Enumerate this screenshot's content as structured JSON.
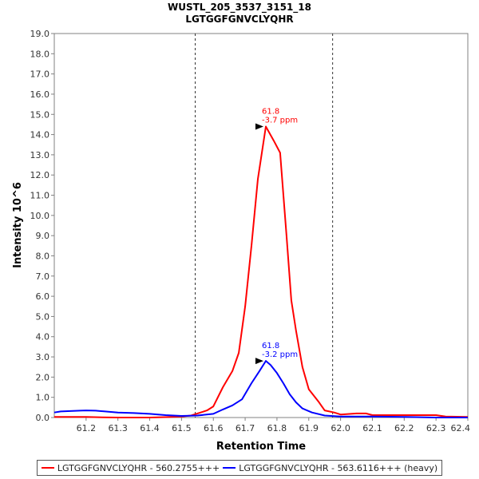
{
  "chart_data": {
    "type": "line",
    "title": "WUSTL_205_3537_3151_18",
    "subtitle": "LGTGGFGNVCLYQHR",
    "xlabel": "Retention Time",
    "ylabel": "Intensity 10^6",
    "xlim": [
      61.1,
      62.4
    ],
    "ylim": [
      0,
      19
    ],
    "x_ticks": [
      "61.2",
      "61.3",
      "61.4",
      "61.5",
      "61.6",
      "61.7",
      "61.8",
      "61.9",
      "62.0",
      "62.1",
      "62.2",
      "62.3",
      "62.4"
    ],
    "y_ticks": [
      "0.0",
      "1.0",
      "2.0",
      "3.0",
      "4.0",
      "5.0",
      "6.0",
      "7.0",
      "8.0",
      "9.0",
      "10.0",
      "11.0",
      "12.0",
      "13.0",
      "14.0",
      "15.0",
      "16.0",
      "17.0",
      "18.0",
      "19.0"
    ],
    "grid": false,
    "legend_position": "bottom",
    "boundaries": [
      61.543,
      61.975
    ],
    "series": [
      {
        "name": "LGTGGFGNVCLYQHR - 560.2755+++",
        "color": "#ff0000",
        "points": [
          [
            61.1,
            0.03
          ],
          [
            61.15,
            0.03
          ],
          [
            61.2,
            0.03
          ],
          [
            61.25,
            0.01
          ],
          [
            61.3,
            0.0
          ],
          [
            61.35,
            0.0
          ],
          [
            61.4,
            0.0
          ],
          [
            61.45,
            0.02
          ],
          [
            61.5,
            0.05
          ],
          [
            61.53,
            0.1
          ],
          [
            61.56,
            0.25
          ],
          [
            61.58,
            0.35
          ],
          [
            61.6,
            0.55
          ],
          [
            61.63,
            1.5
          ],
          [
            61.66,
            2.3
          ],
          [
            61.68,
            3.2
          ],
          [
            61.7,
            5.5
          ],
          [
            61.72,
            8.5
          ],
          [
            61.74,
            11.8
          ],
          [
            61.765,
            14.4
          ],
          [
            61.79,
            13.7
          ],
          [
            61.81,
            13.1
          ],
          [
            61.83,
            9.0
          ],
          [
            61.845,
            5.8
          ],
          [
            61.86,
            4.3
          ],
          [
            61.88,
            2.5
          ],
          [
            61.9,
            1.4
          ],
          [
            61.93,
            0.8
          ],
          [
            61.95,
            0.35
          ],
          [
            61.98,
            0.25
          ],
          [
            62.0,
            0.15
          ],
          [
            62.05,
            0.2
          ],
          [
            62.08,
            0.2
          ],
          [
            62.1,
            0.12
          ],
          [
            62.2,
            0.12
          ],
          [
            62.3,
            0.12
          ],
          [
            62.33,
            0.05
          ],
          [
            62.4,
            0.03
          ]
        ],
        "peak_label": {
          "x": 61.765,
          "y": 14.4,
          "rt": "61.8",
          "ppm": "-3.7 ppm"
        }
      },
      {
        "name": "LGTGGFGNVCLYQHR - 563.6116+++ (heavy)",
        "color": "#0000ff",
        "points": [
          [
            61.1,
            0.25
          ],
          [
            61.12,
            0.3
          ],
          [
            61.15,
            0.32
          ],
          [
            61.18,
            0.34
          ],
          [
            61.2,
            0.35
          ],
          [
            61.23,
            0.34
          ],
          [
            61.26,
            0.3
          ],
          [
            61.3,
            0.25
          ],
          [
            61.35,
            0.22
          ],
          [
            61.4,
            0.18
          ],
          [
            61.45,
            0.12
          ],
          [
            61.5,
            0.08
          ],
          [
            61.55,
            0.1
          ],
          [
            61.6,
            0.18
          ],
          [
            61.63,
            0.4
          ],
          [
            61.66,
            0.6
          ],
          [
            61.69,
            0.9
          ],
          [
            61.72,
            1.7
          ],
          [
            61.745,
            2.3
          ],
          [
            61.765,
            2.8
          ],
          [
            61.78,
            2.6
          ],
          [
            61.8,
            2.2
          ],
          [
            61.82,
            1.7
          ],
          [
            61.84,
            1.15
          ],
          [
            61.86,
            0.75
          ],
          [
            61.88,
            0.45
          ],
          [
            61.91,
            0.25
          ],
          [
            61.95,
            0.1
          ],
          [
            62.0,
            0.05
          ],
          [
            62.1,
            0.05
          ],
          [
            62.2,
            0.03
          ],
          [
            62.3,
            0.0
          ],
          [
            62.4,
            0.0
          ]
        ],
        "peak_label": {
          "x": 61.765,
          "y": 2.8,
          "rt": "61.8",
          "ppm": "-3.2 ppm"
        }
      }
    ]
  }
}
